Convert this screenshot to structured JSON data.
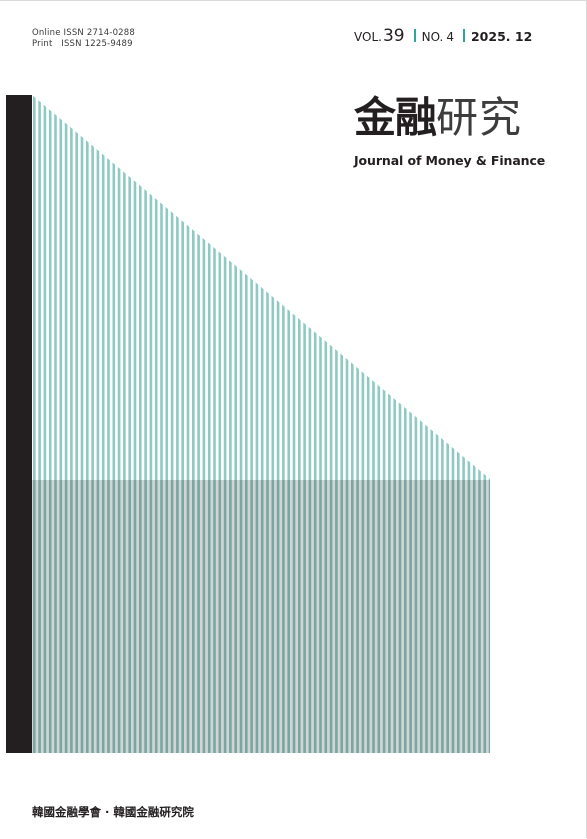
{
  "issn": {
    "online": "Online ISSN 2714-0288",
    "print": "Print   ISSN 1225-9489"
  },
  "issue": {
    "vol_label": "VOL.",
    "vol_number": "39",
    "no_label": "NO.",
    "no_number": "4",
    "date": "2025. 12"
  },
  "journal": {
    "title_bold": "金融",
    "title_light": "研究",
    "english_title": "Journal of Money & Finance"
  },
  "publisher": "韓國金融學會 · 韓國金融硏究院",
  "colors": {
    "accent_teal": "#2fa49a",
    "stripe_light": "#8ec9c3",
    "stripe_dark": "#74a59e",
    "black_bar": "#231f20"
  }
}
